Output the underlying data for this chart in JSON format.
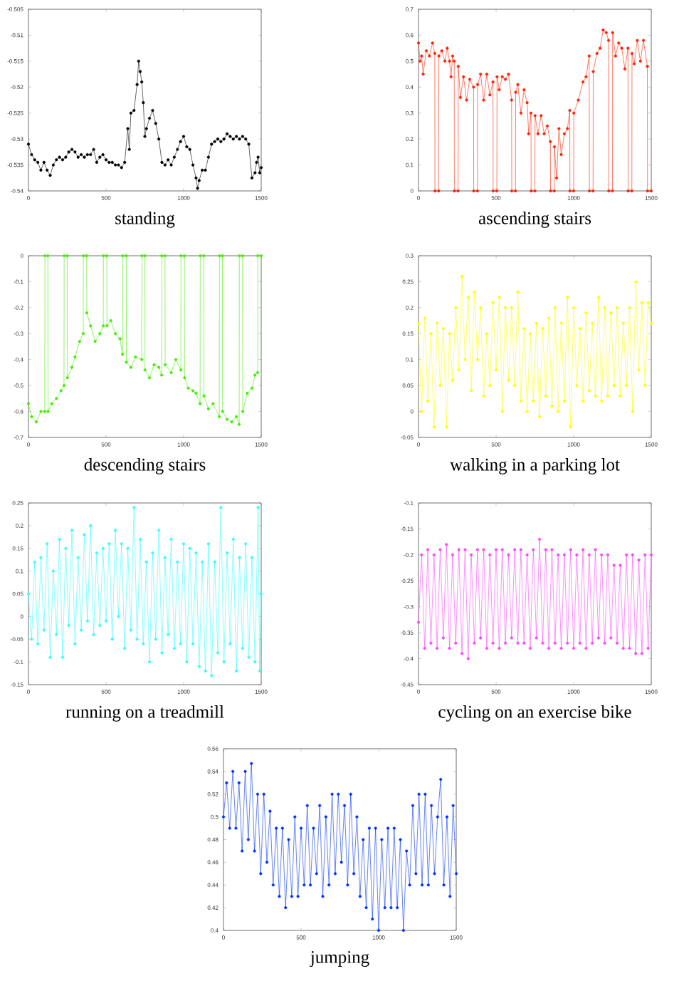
{
  "chart_data": [
    {
      "type": "line",
      "title": "standing",
      "color": "#000000",
      "marker": "circle",
      "xlim": [
        0,
        1500
      ],
      "ylim": [
        -0.54,
        -0.505
      ],
      "xticks": [
        0,
        500,
        1000,
        1500
      ],
      "yticks": [
        -0.54,
        -0.535,
        -0.53,
        -0.525,
        -0.52,
        -0.515,
        -0.51,
        -0.505
      ],
      "x": [
        0,
        20,
        40,
        60,
        80,
        100,
        120,
        140,
        160,
        180,
        200,
        220,
        240,
        260,
        280,
        300,
        320,
        340,
        360,
        380,
        400,
        420,
        440,
        460,
        480,
        500,
        520,
        540,
        560,
        580,
        600,
        620,
        640,
        650,
        660,
        680,
        700,
        710,
        720,
        730,
        740,
        750,
        760,
        780,
        800,
        820,
        840,
        860,
        880,
        900,
        920,
        940,
        960,
        980,
        1000,
        1020,
        1040,
        1060,
        1080,
        1090,
        1100,
        1120,
        1140,
        1160,
        1180,
        1200,
        1220,
        1240,
        1260,
        1280,
        1300,
        1320,
        1340,
        1360,
        1380,
        1400,
        1420,
        1440,
        1460,
        1470,
        1480,
        1490,
        1500
      ],
      "values": [
        -0.531,
        -0.533,
        -0.534,
        -0.5345,
        -0.536,
        -0.5345,
        -0.536,
        -0.537,
        -0.535,
        -0.534,
        -0.5335,
        -0.534,
        -0.5335,
        -0.5325,
        -0.532,
        -0.5325,
        -0.5335,
        -0.533,
        -0.5335,
        -0.533,
        -0.533,
        -0.532,
        -0.5345,
        -0.5335,
        -0.533,
        -0.534,
        -0.5345,
        -0.5345,
        -0.535,
        -0.535,
        -0.5355,
        -0.5345,
        -0.528,
        -0.532,
        -0.525,
        -0.5245,
        -0.5195,
        -0.515,
        -0.517,
        -0.519,
        -0.523,
        -0.5295,
        -0.528,
        -0.526,
        -0.5245,
        -0.527,
        -0.53,
        -0.5345,
        -0.535,
        -0.534,
        -0.535,
        -0.5335,
        -0.532,
        -0.5305,
        -0.5295,
        -0.5315,
        -0.532,
        -0.535,
        -0.5375,
        -0.5395,
        -0.538,
        -0.536,
        -0.536,
        -0.5335,
        -0.531,
        -0.5305,
        -0.53,
        -0.5305,
        -0.53,
        -0.529,
        -0.5295,
        -0.53,
        -0.5295,
        -0.53,
        -0.5295,
        -0.53,
        -0.531,
        -0.5375,
        -0.5365,
        -0.5345,
        -0.5335,
        -0.5365,
        -0.5355
      ]
    },
    {
      "type": "line",
      "title": "ascending stairs",
      "color": "#ff2200",
      "marker": "circle",
      "xlim": [
        0,
        1500
      ],
      "ylim": [
        0,
        0.7
      ],
      "xticks": [
        0,
        500,
        1000,
        1500
      ],
      "yticks": [
        0,
        0.1,
        0.2,
        0.3,
        0.4,
        0.5,
        0.6,
        0.7
      ],
      "x": [
        0,
        10,
        20,
        30,
        50,
        70,
        90,
        105,
        106,
        130,
        131,
        150,
        170,
        185,
        200,
        210,
        220,
        230,
        231,
        255,
        256,
        270,
        290,
        310,
        330,
        355,
        356,
        380,
        381,
        400,
        420,
        440,
        460,
        480,
        481,
        505,
        506,
        520,
        540,
        560,
        580,
        600,
        601,
        625,
        626,
        640,
        660,
        680,
        700,
        710,
        725,
        726,
        750,
        751,
        770,
        790,
        810,
        830,
        850,
        851,
        875,
        876,
        890,
        905,
        920,
        940,
        960,
        975,
        976,
        1000,
        1001,
        1030,
        1060,
        1080,
        1100,
        1101,
        1125,
        1126,
        1150,
        1170,
        1190,
        1210,
        1225,
        1226,
        1250,
        1251,
        1270,
        1290,
        1310,
        1330,
        1350,
        1351,
        1375,
        1376,
        1390,
        1410,
        1430,
        1450,
        1475,
        1476,
        1500
      ],
      "values": [
        0.57,
        0.5,
        0.52,
        0.45,
        0.54,
        0.52,
        0.57,
        0.53,
        0,
        0,
        0.52,
        0.54,
        0.5,
        0.55,
        0.5,
        0.44,
        0.52,
        0.5,
        0,
        0,
        0.48,
        0.36,
        0.44,
        0.35,
        0.43,
        0.4,
        0,
        0,
        0.41,
        0.45,
        0.35,
        0.45,
        0.37,
        0.42,
        0,
        0,
        0.44,
        0.39,
        0.44,
        0.43,
        0.45,
        0.35,
        0,
        0,
        0.38,
        0.41,
        0.3,
        0.39,
        0.34,
        0.22,
        0.3,
        0,
        0,
        0.29,
        0.22,
        0.29,
        0.22,
        0.25,
        0.19,
        0,
        0,
        0.17,
        0.05,
        0.24,
        0.14,
        0.22,
        0.24,
        0.31,
        0,
        0,
        0.3,
        0.35,
        0.42,
        0.44,
        0.52,
        0,
        0,
        0.46,
        0.53,
        0.55,
        0.62,
        0.61,
        0.58,
        0,
        0,
        0.61,
        0.52,
        0.57,
        0.55,
        0.47,
        0.55,
        0,
        0,
        0.53,
        0.49,
        0.58,
        0.5,
        0.58,
        0.48,
        0,
        0
      ]
    },
    {
      "type": "line",
      "title": "descending stairs",
      "color": "#44ee00",
      "marker": "circle",
      "xlim": [
        0,
        1500
      ],
      "ylim": [
        -0.7,
        0
      ],
      "xticks": [
        0,
        500,
        1000,
        1500
      ],
      "yticks": [
        -0.7,
        -0.6,
        -0.5,
        -0.4,
        -0.3,
        -0.2,
        -0.1,
        0
      ],
      "x": [
        0,
        20,
        50,
        80,
        105,
        106,
        125,
        126,
        150,
        180,
        210,
        229,
        230,
        250,
        251,
        280,
        300,
        330,
        353,
        354,
        375,
        376,
        400,
        430,
        460,
        482,
        483,
        505,
        506,
        530,
        560,
        590,
        606,
        607,
        630,
        631,
        660,
        690,
        730,
        731,
        750,
        751,
        780,
        810,
        840,
        858,
        859,
        880,
        881,
        920,
        950,
        982,
        983,
        1005,
        1006,
        1030,
        1060,
        1080,
        1106,
        1107,
        1130,
        1131,
        1160,
        1190,
        1230,
        1231,
        1250,
        1251,
        1280,
        1310,
        1340,
        1358,
        1359,
        1380,
        1381,
        1410,
        1440,
        1460,
        1477,
        1478,
        1500
      ],
      "values": [
        -0.57,
        -0.62,
        -0.64,
        -0.6,
        -0.6,
        0,
        0,
        -0.6,
        -0.57,
        -0.55,
        -0.52,
        -0.5,
        0,
        0,
        -0.47,
        -0.43,
        -0.39,
        -0.33,
        -0.3,
        0,
        0,
        -0.22,
        -0.27,
        -0.33,
        -0.3,
        -0.27,
        0,
        0,
        -0.27,
        -0.25,
        -0.3,
        -0.32,
        -0.38,
        0,
        0,
        -0.41,
        -0.43,
        -0.39,
        -0.4,
        0,
        0,
        -0.44,
        -0.47,
        -0.42,
        -0.43,
        -0.46,
        0,
        0,
        -0.42,
        -0.45,
        -0.4,
        -0.44,
        0,
        0,
        -0.47,
        -0.51,
        -0.52,
        -0.53,
        -0.57,
        0,
        0,
        -0.54,
        -0.59,
        -0.57,
        -0.62,
        0,
        0,
        -0.6,
        -0.63,
        -0.64,
        -0.62,
        -0.65,
        0,
        0,
        -0.6,
        -0.53,
        -0.51,
        -0.46,
        -0.45,
        0,
        0
      ]
    },
    {
      "type": "line",
      "title": "walking in a parking lot",
      "color": "#ffff00",
      "marker": "circle",
      "xlim": [
        0,
        1500
      ],
      "ylim": [
        -0.05,
        0.3
      ],
      "xticks": [
        0,
        500,
        1000,
        1500
      ],
      "yticks": [
        -0.05,
        0,
        0.05,
        0.1,
        0.15,
        0.2,
        0.25,
        0.3
      ],
      "x": [
        0,
        20,
        40,
        60,
        80,
        100,
        120,
        140,
        160,
        180,
        200,
        220,
        240,
        260,
        280,
        300,
        320,
        340,
        360,
        380,
        400,
        420,
        440,
        460,
        480,
        500,
        520,
        540,
        560,
        580,
        600,
        620,
        640,
        660,
        680,
        700,
        720,
        740,
        760,
        780,
        800,
        820,
        840,
        860,
        880,
        900,
        920,
        940,
        960,
        980,
        1000,
        1020,
        1040,
        1060,
        1080,
        1100,
        1120,
        1140,
        1160,
        1180,
        1200,
        1220,
        1240,
        1260,
        1280,
        1300,
        1320,
        1340,
        1360,
        1380,
        1400,
        1420,
        1440,
        1460,
        1480,
        1500
      ],
      "values": [
        0.17,
        0.0,
        0.18,
        0.02,
        0.15,
        -0.03,
        0.17,
        0.05,
        0.16,
        -0.03,
        0.15,
        0.06,
        0.2,
        0.08,
        0.26,
        0.1,
        0.22,
        0.04,
        0.23,
        0.1,
        0.2,
        0.03,
        0.15,
        0.05,
        0.21,
        0.08,
        0.22,
        0.0,
        0.2,
        0.06,
        0.2,
        0.05,
        0.23,
        0.02,
        0.16,
        0.0,
        0.15,
        0.02,
        0.17,
        -0.01,
        0.16,
        0.03,
        0.18,
        0.01,
        0.2,
        0.0,
        0.17,
        0.02,
        0.22,
        -0.03,
        0.2,
        0.05,
        0.16,
        0.02,
        0.19,
        0.04,
        0.17,
        0.03,
        0.22,
        0.02,
        0.2,
        0.03,
        0.19,
        0.05,
        0.2,
        0.03,
        0.17,
        0.05,
        0.2,
        0.0,
        0.25,
        0.08,
        0.21,
        0.05,
        0.21,
        0.17
      ]
    },
    {
      "type": "line",
      "title": "running on a treadmill",
      "color": "#33ffff",
      "marker": "circle",
      "xlim": [
        0,
        1500
      ],
      "ylim": [
        -0.15,
        0.25
      ],
      "xticks": [
        0,
        500,
        1000,
        1500
      ],
      "yticks": [
        -0.15,
        -0.1,
        -0.05,
        0,
        0.05,
        0.1,
        0.15,
        0.2,
        0.25
      ],
      "x": [
        0,
        20,
        40,
        60,
        80,
        100,
        120,
        140,
        160,
        180,
        200,
        220,
        240,
        260,
        280,
        300,
        320,
        340,
        360,
        380,
        400,
        420,
        440,
        460,
        480,
        500,
        520,
        540,
        560,
        580,
        600,
        620,
        640,
        660,
        680,
        700,
        720,
        740,
        760,
        780,
        800,
        820,
        840,
        860,
        880,
        900,
        920,
        940,
        960,
        980,
        1000,
        1020,
        1040,
        1060,
        1080,
        1100,
        1120,
        1140,
        1160,
        1180,
        1200,
        1220,
        1240,
        1260,
        1280,
        1300,
        1320,
        1340,
        1360,
        1380,
        1400,
        1420,
        1440,
        1460,
        1480,
        1490,
        1500
      ],
      "values": [
        0.05,
        -0.05,
        0.12,
        -0.06,
        0.13,
        -0.03,
        0.16,
        -0.09,
        0.1,
        -0.04,
        0.17,
        -0.09,
        0.15,
        -0.02,
        0.19,
        -0.06,
        0.13,
        -0.03,
        0.18,
        -0.01,
        0.2,
        -0.04,
        0.14,
        -0.02,
        0.15,
        -0.01,
        0.16,
        -0.05,
        0.19,
        0.0,
        0.16,
        -0.07,
        0.15,
        -0.03,
        0.24,
        -0.05,
        0.17,
        -0.06,
        0.12,
        -0.1,
        0.14,
        -0.05,
        0.19,
        -0.08,
        0.13,
        -0.04,
        0.17,
        -0.07,
        0.12,
        -0.06,
        0.16,
        -0.1,
        0.15,
        -0.06,
        0.14,
        -0.11,
        0.12,
        -0.12,
        0.16,
        -0.13,
        0.12,
        -0.08,
        0.24,
        -0.1,
        0.14,
        -0.06,
        0.17,
        -0.12,
        0.13,
        -0.07,
        0.16,
        -0.09,
        0.13,
        -0.1,
        0.24,
        -0.12,
        0.05
      ]
    },
    {
      "type": "line",
      "title": "cycling on an exercise bike",
      "color": "#ff44ff",
      "marker": "circle",
      "xlim": [
        0,
        1500
      ],
      "ylim": [
        -0.45,
        -0.1
      ],
      "xticks": [
        0,
        500,
        1000,
        1500
      ],
      "yticks": [
        -0.45,
        -0.4,
        -0.35,
        -0.3,
        -0.25,
        -0.2,
        -0.15,
        -0.1
      ],
      "x": [
        0,
        20,
        40,
        60,
        80,
        100,
        120,
        140,
        160,
        180,
        200,
        220,
        240,
        260,
        280,
        300,
        320,
        340,
        360,
        380,
        400,
        420,
        440,
        460,
        480,
        500,
        520,
        540,
        560,
        580,
        600,
        620,
        640,
        660,
        680,
        700,
        720,
        740,
        760,
        780,
        800,
        820,
        840,
        860,
        880,
        900,
        920,
        940,
        960,
        980,
        1000,
        1020,
        1040,
        1060,
        1080,
        1100,
        1120,
        1140,
        1160,
        1180,
        1200,
        1220,
        1240,
        1260,
        1280,
        1300,
        1320,
        1340,
        1360,
        1380,
        1400,
        1420,
        1440,
        1460,
        1480,
        1500
      ],
      "values": [
        -0.33,
        -0.2,
        -0.38,
        -0.19,
        -0.37,
        -0.2,
        -0.38,
        -0.19,
        -0.36,
        -0.18,
        -0.38,
        -0.2,
        -0.37,
        -0.19,
        -0.39,
        -0.19,
        -0.4,
        -0.2,
        -0.37,
        -0.19,
        -0.36,
        -0.19,
        -0.38,
        -0.2,
        -0.37,
        -0.19,
        -0.38,
        -0.19,
        -0.37,
        -0.2,
        -0.36,
        -0.19,
        -0.37,
        -0.19,
        -0.37,
        -0.2,
        -0.38,
        -0.19,
        -0.36,
        -0.17,
        -0.37,
        -0.19,
        -0.38,
        -0.19,
        -0.37,
        -0.2,
        -0.38,
        -0.2,
        -0.37,
        -0.19,
        -0.38,
        -0.2,
        -0.37,
        -0.19,
        -0.38,
        -0.2,
        -0.37,
        -0.19,
        -0.36,
        -0.2,
        -0.37,
        -0.2,
        -0.36,
        -0.22,
        -0.37,
        -0.22,
        -0.38,
        -0.2,
        -0.38,
        -0.2,
        -0.39,
        -0.21,
        -0.39,
        -0.2,
        -0.38,
        -0.2
      ]
    },
    {
      "type": "line",
      "title": "jumping",
      "color": "#0033ff",
      "marker": "circle",
      "xlim": [
        0,
        1500
      ],
      "ylim": [
        0.4,
        0.56
      ],
      "xticks": [
        0,
        500,
        1000,
        1500
      ],
      "yticks": [
        0.4,
        0.42,
        0.44,
        0.46,
        0.48,
        0.5,
        0.52,
        0.54,
        0.56
      ],
      "x": [
        0,
        20,
        40,
        60,
        80,
        100,
        120,
        140,
        160,
        180,
        200,
        220,
        240,
        260,
        280,
        300,
        320,
        340,
        360,
        380,
        400,
        420,
        440,
        460,
        480,
        500,
        520,
        540,
        560,
        580,
        600,
        620,
        640,
        660,
        680,
        700,
        720,
        740,
        760,
        780,
        800,
        820,
        840,
        860,
        880,
        900,
        920,
        940,
        960,
        980,
        1000,
        1020,
        1040,
        1060,
        1080,
        1100,
        1120,
        1140,
        1160,
        1180,
        1200,
        1220,
        1240,
        1260,
        1280,
        1300,
        1320,
        1340,
        1360,
        1380,
        1400,
        1420,
        1440,
        1460,
        1480,
        1500
      ],
      "values": [
        0.5,
        0.53,
        0.49,
        0.54,
        0.49,
        0.53,
        0.47,
        0.54,
        0.48,
        0.547,
        0.47,
        0.52,
        0.45,
        0.52,
        0.46,
        0.505,
        0.44,
        0.49,
        0.43,
        0.49,
        0.42,
        0.48,
        0.43,
        0.5,
        0.43,
        0.49,
        0.44,
        0.51,
        0.44,
        0.49,
        0.45,
        0.51,
        0.43,
        0.5,
        0.44,
        0.52,
        0.45,
        0.52,
        0.46,
        0.51,
        0.44,
        0.52,
        0.45,
        0.5,
        0.43,
        0.48,
        0.42,
        0.49,
        0.41,
        0.49,
        0.4,
        0.48,
        0.42,
        0.49,
        0.42,
        0.49,
        0.42,
        0.48,
        0.4,
        0.47,
        0.44,
        0.51,
        0.45,
        0.52,
        0.44,
        0.52,
        0.44,
        0.51,
        0.45,
        0.5,
        0.533,
        0.44,
        0.5,
        0.43,
        0.51,
        0.45
      ]
    }
  ]
}
